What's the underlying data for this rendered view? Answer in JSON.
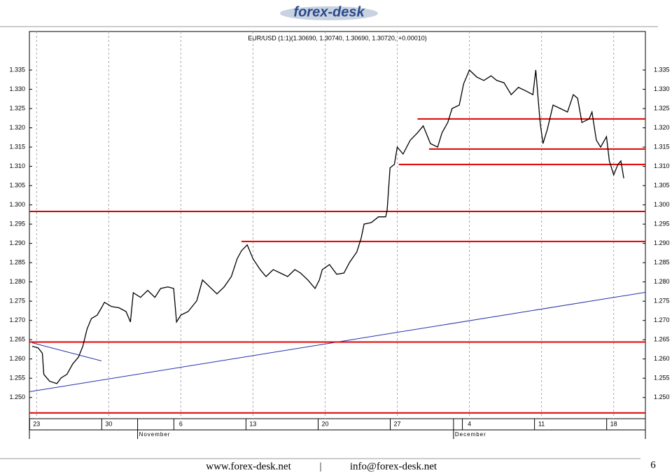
{
  "header": {
    "logo": "forex-desk"
  },
  "chart_data": {
    "type": "line",
    "title": "EUR/USD (1:1)(1.30690, 1.30740, 1.30690, 1.30720, +0.00010)",
    "xlim": [
      -0.5,
      42.2
    ],
    "ylim": [
      1.2445,
      1.345
    ],
    "xticks": [
      {
        "value": 0,
        "label": "23"
      },
      {
        "value": 5,
        "label": "30"
      },
      {
        "value": 10,
        "label": "6"
      },
      {
        "value": 15,
        "label": "13"
      },
      {
        "value": 20,
        "label": "20"
      },
      {
        "value": 25,
        "label": "27"
      },
      {
        "value": 30,
        "label": "4"
      },
      {
        "value": 35,
        "label": "11"
      },
      {
        "value": 40,
        "label": "18"
      }
    ],
    "months": [
      {
        "value": 7.0,
        "label": "November"
      },
      {
        "value": 28.9,
        "label": "December"
      }
    ],
    "yticks": [
      {
        "value": 1.25,
        "label": "1.250"
      },
      1.255,
      {
        "value": 1.26,
        "label": "1.260"
      },
      1.265,
      {
        "value": 1.27,
        "label": "1.270"
      },
      1.275,
      {
        "value": 1.28,
        "label": "1.280"
      },
      1.285,
      {
        "value": 1.29,
        "label": "1.290"
      },
      1.295,
      {
        "value": 1.3,
        "label": "1.300"
      },
      1.305,
      {
        "value": 1.31,
        "label": "1.310"
      },
      1.315,
      {
        "value": 1.32,
        "label": "1.320"
      },
      1.325,
      {
        "value": 1.33,
        "label": "1.330"
      },
      1.335
    ],
    "grid": true,
    "series": [
      {
        "color": "#000000",
        "x": [
          -0.3,
          0.1,
          0.4,
          0.5,
          0.9,
          1.4,
          1.7,
          2.1,
          2.5,
          2.9,
          3.2,
          3.5,
          3.8,
          4.2,
          4.5,
          4.7,
          5.2,
          5.7,
          6.2,
          6.5,
          6.7,
          7.2,
          7.7,
          8.2,
          8.6,
          9.1,
          9.5,
          9.7,
          10.0,
          10.5,
          11.1,
          11.5,
          12.0,
          12.5,
          13.0,
          13.5,
          13.9,
          14.2,
          14.6,
          15.0,
          15.5,
          15.9,
          16.4,
          16.9,
          17.4,
          17.9,
          18.3,
          18.8,
          19.3,
          19.6,
          19.8,
          20.3,
          20.8,
          21.3,
          21.7,
          22.2,
          22.5,
          22.7,
          23.2,
          23.7,
          24.2,
          24.3,
          24.5,
          24.8,
          25.0,
          25.4,
          25.9,
          26.4,
          26.8,
          27.3,
          27.8,
          28.1,
          28.5,
          28.8,
          29.3,
          29.6,
          30.0,
          30.5,
          31.0,
          31.5,
          31.9,
          32.4,
          32.9,
          33.4,
          33.9,
          34.4,
          34.6,
          34.9,
          35.1,
          35.4,
          35.8,
          36.3,
          36.8,
          37.2,
          37.5,
          37.8,
          38.3,
          38.5,
          38.8,
          39.1,
          39.5,
          39.7,
          40.0,
          40.3,
          40.5,
          40.7
        ],
        "values": [
          1.2633,
          1.2629,
          1.2615,
          1.256,
          1.2542,
          1.2536,
          1.2551,
          1.256,
          1.2587,
          1.2605,
          1.2633,
          1.2678,
          1.2705,
          1.2714,
          1.2733,
          1.2747,
          1.2736,
          1.2733,
          1.2723,
          1.2696,
          1.2772,
          1.276,
          1.2778,
          1.276,
          1.2783,
          1.2787,
          1.2783,
          1.2696,
          1.2714,
          1.2723,
          1.2751,
          1.2805,
          1.2787,
          1.2769,
          1.2787,
          1.2814,
          1.286,
          1.2881,
          1.2896,
          1.286,
          1.2832,
          1.2814,
          1.2832,
          1.2823,
          1.2814,
          1.2832,
          1.2823,
          1.2805,
          1.2783,
          1.2805,
          1.2832,
          1.2845,
          1.282,
          1.2823,
          1.2851,
          1.2878,
          1.2914,
          1.295,
          1.2954,
          1.2969,
          1.2969,
          1.2987,
          1.3096,
          1.3105,
          1.315,
          1.3132,
          1.3168,
          1.3187,
          1.3205,
          1.3159,
          1.315,
          1.3187,
          1.3214,
          1.325,
          1.3259,
          1.3314,
          1.335,
          1.3332,
          1.3323,
          1.3335,
          1.3323,
          1.3317,
          1.3286,
          1.3305,
          1.3296,
          1.3286,
          1.335,
          1.3214,
          1.3159,
          1.3196,
          1.3259,
          1.325,
          1.3241,
          1.3286,
          1.3277,
          1.3214,
          1.3223,
          1.3241,
          1.3168,
          1.315,
          1.3177,
          1.3114,
          1.3078,
          1.3105,
          1.3114,
          1.3069
        ]
      }
    ],
    "levels": [
      {
        "value": 1.2983,
        "color": "#e00000"
      },
      {
        "value": 1.2905,
        "from": 14.2,
        "color": "#e00000"
      },
      {
        "value": 1.2644,
        "color": "#e00000"
      },
      {
        "value": 1.246,
        "color": "#e00000"
      },
      {
        "value": 1.3105,
        "from": 25.1,
        "color": "#e00000"
      },
      {
        "value": 1.3145,
        "from": 27.2,
        "color": "#e00000"
      },
      {
        "value": 1.3223,
        "from": 26.4,
        "color": "#e00000"
      }
    ],
    "trendlines": [
      {
        "x": [
          -0.5,
          42.2
        ],
        "values": [
          1.2515,
          1.2773
        ],
        "color": "#2233aa"
      },
      {
        "x": [
          -0.3,
          4.5
        ],
        "values": [
          1.2642,
          1.2595
        ],
        "color": "#2233aa"
      }
    ]
  },
  "footer": {
    "website": "www.forex-desk.net",
    "separator": "|",
    "email": "info@forex-desk.net",
    "page": 6
  }
}
